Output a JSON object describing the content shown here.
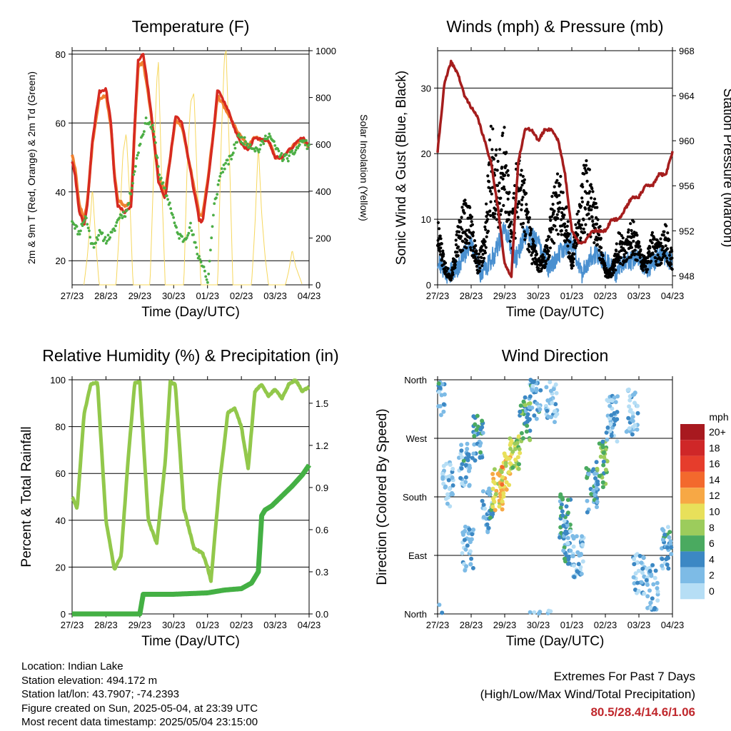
{
  "footer": {
    "location": "Location: Indian Lake",
    "elevation": "Station elevation: 494.172 m",
    "latlon": "Station lat/lon: 43.7907; -74.2393",
    "created": "Figure created on Sun, 2025-05-04, at 23:39 UTC",
    "recent": "Most recent data timestamp: 2025/05/04 23:15:00"
  },
  "extremes": {
    "title": "Extremes For Past 7 Days",
    "subtitle": "(High/Low/Max Wind/Total Precipitation)",
    "values": "80.5/28.4/14.6/1.06",
    "color": "#c0282d"
  },
  "chart_data": [
    {
      "type": "line",
      "title": "Temperature (F)",
      "xlabel": "Time (Day/UTC)",
      "ylabel": "2m & 9m T (Red, Orange) & 2m Td (Green)",
      "y2label": "Solar Insolation (Yellow)",
      "x_ticks": [
        "27/23",
        "28/23",
        "29/23",
        "30/23",
        "01/23",
        "02/23",
        "03/23",
        "04/23"
      ],
      "y_ticks": [
        20,
        40,
        60,
        80
      ],
      "y2_ticks": [
        0,
        200,
        400,
        600,
        800,
        1000
      ],
      "ylim": [
        13,
        81
      ],
      "y2lim": [
        0,
        1000
      ],
      "grid": "horizontal",
      "colors": {
        "t2m": "#d62a21",
        "t9m": "#f08030",
        "td": "#4cae45",
        "solar": "#f6d75e"
      },
      "series": [
        {
          "key": "t2m",
          "x": [
            0,
            0.1,
            0.2,
            0.35,
            0.45,
            0.6,
            0.8,
            1.0,
            1.15,
            1.25,
            1.35,
            1.55,
            1.75,
            1.85,
            1.95,
            2.1,
            2.3,
            2.55,
            2.75,
            2.9,
            3.05,
            3.25,
            3.55,
            3.75,
            3.85,
            4.0,
            4.15,
            4.3,
            4.6,
            4.85,
            5.0,
            5.2,
            5.4,
            5.6,
            5.8,
            6.0,
            6.2,
            6.4,
            6.6,
            6.8,
            7.0
          ],
          "y": [
            49,
            44,
            35,
            30,
            36,
            55,
            69,
            70,
            60,
            44,
            36,
            34,
            36,
            60,
            78,
            80,
            66,
            43,
            38,
            50,
            62,
            60,
            43,
            32,
            31,
            42,
            55,
            70,
            64,
            57,
            54,
            52,
            56,
            55,
            55,
            50,
            50,
            52,
            54,
            56,
            53
          ]
        },
        {
          "key": "t9m",
          "x": [
            0,
            0.1,
            0.2,
            0.35,
            0.45,
            0.6,
            0.8,
            1.0,
            1.15,
            1.25,
            1.35,
            1.55,
            1.75,
            1.85,
            1.95,
            2.1,
            2.3,
            2.55,
            2.75,
            2.9,
            3.05,
            3.25,
            3.55,
            3.75,
            3.85,
            4.0,
            4.15,
            4.3,
            4.6,
            4.85,
            5.0,
            5.2,
            5.4,
            5.6,
            5.8,
            6.0,
            6.2,
            6.4,
            6.6,
            6.8,
            7.0
          ],
          "y": [
            51,
            46,
            37,
            32,
            37,
            54,
            67,
            68,
            59,
            45,
            38,
            36,
            37,
            59,
            76,
            78,
            65,
            44,
            40,
            50,
            61,
            59,
            44,
            34,
            33,
            43,
            55,
            68,
            63,
            58,
            56,
            53,
            56,
            55,
            55,
            50,
            50,
            52,
            54,
            55,
            53
          ]
        },
        {
          "key": "td",
          "x": [
            0,
            0.2,
            0.4,
            0.6,
            0.8,
            1.0,
            1.2,
            1.4,
            1.6,
            1.7,
            1.8,
            2.0,
            2.2,
            2.4,
            2.6,
            2.9,
            3.1,
            3.3,
            3.5,
            3.7,
            3.9,
            4.0,
            4.2,
            4.4,
            4.7,
            4.9,
            5.2,
            5.5,
            5.8,
            6.0,
            6.2,
            6.4,
            6.6,
            6.8,
            7.0
          ],
          "y": [
            32,
            28,
            33,
            24,
            28,
            26,
            28,
            33,
            34,
            38,
            44,
            54,
            61,
            58,
            44,
            36,
            28,
            26,
            30,
            22,
            18,
            13,
            36,
            46,
            50,
            56,
            54,
            52,
            57,
            53,
            50,
            50,
            52,
            55,
            53
          ]
        },
        {
          "key": "solar",
          "axis": "y2",
          "x": [
            0.35,
            0.45,
            0.55,
            0.6,
            0.7,
            0.8,
            1.3,
            1.4,
            1.5,
            1.6,
            1.7,
            1.8,
            2.3,
            2.4,
            2.5,
            2.55,
            2.65,
            2.75,
            3.3,
            3.4,
            3.5,
            3.6,
            3.7,
            3.8,
            4.3,
            4.4,
            4.5,
            4.55,
            4.65,
            4.75,
            5.3,
            5.4,
            5.5,
            5.6,
            5.7,
            5.8,
            6.3,
            6.4,
            6.5,
            6.6,
            6.7,
            6.8
          ],
          "y": [
            0,
            120,
            300,
            420,
            180,
            0,
            0,
            250,
            560,
            650,
            380,
            0,
            0,
            450,
            870,
            950,
            420,
            0,
            0,
            520,
            780,
            820,
            430,
            0,
            0,
            600,
            980,
            1000,
            540,
            0,
            0,
            250,
            600,
            300,
            120,
            0,
            0,
            60,
            150,
            80,
            40,
            0
          ]
        }
      ]
    },
    {
      "type": "line",
      "title": "Winds (mph) & Pressure (mb)",
      "xlabel": "Time (Day/UTC)",
      "ylabel": "Sonic Wind & Gust (Blue, Black)",
      "y2label": "Station Pressure (Maroon)",
      "x_ticks": [
        "27/23",
        "28/23",
        "29/23",
        "30/23",
        "01/23",
        "02/23",
        "03/23",
        "04/23"
      ],
      "y_ticks": [
        0,
        10,
        20,
        30
      ],
      "y2_ticks": [
        948,
        952,
        956,
        960,
        964,
        968
      ],
      "ylim": [
        0,
        35.7
      ],
      "y2lim": [
        947.2,
        968
      ],
      "grid": "horizontal",
      "colors": {
        "wind": "#4a90d0",
        "gust": "#000000",
        "pressure": "#a51d1d"
      },
      "series": [
        {
          "key": "wind",
          "x": [
            0,
            0.3,
            0.6,
            1.0,
            1.3,
            1.7,
            2.0,
            2.3,
            2.6,
            3.0,
            3.3,
            3.6,
            4.0,
            4.3,
            4.6,
            5.0,
            5.3,
            5.6,
            6.0,
            6.3,
            6.6,
            7.0
          ],
          "y": [
            3,
            1,
            2,
            6,
            1,
            4,
            8,
            3,
            7,
            6,
            2,
            4,
            6,
            1,
            4,
            3,
            1,
            3,
            3,
            2,
            4,
            3
          ]
        },
        {
          "key": "gust",
          "x": [
            0,
            0.2,
            0.4,
            0.6,
            0.8,
            1.0,
            1.2,
            1.4,
            1.6,
            1.8,
            2.0,
            2.2,
            2.4,
            2.6,
            2.8,
            3.0,
            3.2,
            3.4,
            3.6,
            3.8,
            4.0,
            4.2,
            4.4,
            4.6,
            4.8,
            5.0,
            5.2,
            5.4,
            5.6,
            5.8,
            6.0,
            6.2,
            6.4,
            6.6,
            6.8,
            7.0
          ],
          "y": [
            8,
            3,
            1,
            7,
            10,
            9,
            3,
            6,
            20,
            15,
            18,
            8,
            16,
            12,
            6,
            3,
            4,
            10,
            13,
            11,
            3,
            10,
            15,
            12,
            8,
            2,
            2,
            6,
            5,
            8,
            5,
            3,
            6,
            5,
            7,
            4
          ]
        },
        {
          "key": "pressure",
          "axis": "y2",
          "x": [
            0,
            0.2,
            0.4,
            0.6,
            0.8,
            1.0,
            1.2,
            1.4,
            1.6,
            1.8,
            2.0,
            2.2,
            2.4,
            2.6,
            2.8,
            3.0,
            3.2,
            3.4,
            3.6,
            3.8,
            4.0,
            4.2,
            4.4,
            4.6,
            4.8,
            5.0,
            5.2,
            5.4,
            5.6,
            5.8,
            6.0,
            6.2,
            6.4,
            6.6,
            6.8,
            7.0
          ],
          "y": [
            959,
            965,
            967,
            966,
            964,
            963,
            962,
            960,
            958,
            954,
            949,
            948,
            958,
            961,
            961,
            960,
            961,
            961,
            960,
            957,
            952,
            951,
            951,
            952,
            952,
            952,
            953,
            953,
            954,
            955,
            955,
            956,
            956,
            957,
            957,
            959
          ]
        }
      ]
    },
    {
      "type": "line",
      "title": "Relative Humidity (%) & Precipitation (in)",
      "xlabel": "Time (Day/UTC)",
      "ylabel": "Percent & Total Rainfall",
      "x_ticks": [
        "27/23",
        "28/23",
        "29/23",
        "30/23",
        "01/23",
        "02/23",
        "03/23",
        "04/23"
      ],
      "y_ticks": [
        0,
        20,
        40,
        60,
        80,
        100
      ],
      "y2_ticks": [
        "0.0",
        "0.3",
        "0.6",
        "0.9",
        "1.2",
        "1.5"
      ],
      "ylim": [
        0,
        100
      ],
      "y2lim": [
        0,
        1.667
      ],
      "grid": "horizontal",
      "colors": {
        "rh": "#92c84b",
        "precip": "#44b044"
      },
      "series": [
        {
          "key": "rh",
          "x": [
            0,
            0.15,
            0.35,
            0.55,
            0.75,
            1.0,
            1.25,
            1.45,
            1.65,
            1.85,
            2.0,
            2.25,
            2.5,
            2.75,
            2.9,
            3.05,
            3.3,
            3.6,
            3.85,
            4.0,
            4.1,
            4.35,
            4.6,
            4.8,
            5.0,
            5.2,
            5.4,
            5.6,
            5.8,
            6.0,
            6.2,
            6.4,
            6.6,
            6.8,
            7.0
          ],
          "y": [
            50,
            45,
            85,
            98,
            99,
            40,
            19,
            25,
            65,
            99,
            99,
            40,
            30,
            65,
            99,
            98,
            45,
            28,
            26,
            20,
            14,
            55,
            86,
            88,
            80,
            62,
            95,
            98,
            93,
            96,
            92,
            98,
            100,
            95,
            97
          ]
        },
        {
          "key": "precip",
          "axis": "y2",
          "x": [
            0,
            1.0,
            2.0,
            2.1,
            2.2,
            3.0,
            4.0,
            4.5,
            5.0,
            5.3,
            5.5,
            5.6,
            5.7,
            5.9,
            6.2,
            6.5,
            6.8,
            7.0
          ],
          "y": [
            0,
            0,
            0,
            0.14,
            0.14,
            0.14,
            0.15,
            0.17,
            0.18,
            0.22,
            0.3,
            0.7,
            0.74,
            0.77,
            0.84,
            0.91,
            0.99,
            1.06
          ]
        }
      ]
    },
    {
      "type": "scatter",
      "title": "Wind Direction",
      "xlabel": "Time (Day/UTC)",
      "ylabel": "Direction (Colored By Speed)",
      "x_ticks": [
        "27/23",
        "28/23",
        "29/23",
        "30/23",
        "01/23",
        "02/23",
        "03/23",
        "04/23"
      ],
      "y_ticks": [
        "North",
        "East",
        "South",
        "West",
        "North"
      ],
      "ylim": [
        0,
        360
      ],
      "grid": "horizontal",
      "legend": {
        "position": "right",
        "title": "mph",
        "labels": [
          "20+",
          "18",
          "16",
          "14",
          "12",
          "10",
          "8",
          "6",
          "4",
          "2",
          "0"
        ],
        "colors": [
          "#a8191f",
          "#cf2728",
          "#e63d2c",
          "#f3692d",
          "#f7a845",
          "#e8e05a",
          "#9ccc5c",
          "#4aaa60",
          "#3c88c4",
          "#7dbbe6",
          "#b6def5"
        ]
      },
      "clusters": [
        {
          "x": 0.05,
          "dir": 340,
          "speed": 3
        },
        {
          "x": 0.3,
          "dir": 200,
          "speed": 1
        },
        {
          "x": 0.8,
          "dir": 230,
          "speed": 3
        },
        {
          "x": 0.9,
          "dir": 100,
          "speed": 2
        },
        {
          "x": 1.2,
          "dir": 270,
          "speed": 4
        },
        {
          "x": 1.5,
          "dir": 160,
          "speed": 3
        },
        {
          "x": 1.8,
          "dir": 188,
          "speed": 10
        },
        {
          "x": 2.0,
          "dir": 215,
          "speed": 11
        },
        {
          "x": 2.3,
          "dir": 250,
          "speed": 8
        },
        {
          "x": 2.6,
          "dir": 300,
          "speed": 5
        },
        {
          "x": 2.9,
          "dir": 330,
          "speed": 3
        },
        {
          "x": 3.4,
          "dir": 330,
          "speed": 1
        },
        {
          "x": 3.8,
          "dir": 150,
          "speed": 5
        },
        {
          "x": 3.9,
          "dir": 110,
          "speed": 3
        },
        {
          "x": 4.2,
          "dir": 90,
          "speed": 2
        },
        {
          "x": 4.6,
          "dir": 190,
          "speed": 4
        },
        {
          "x": 4.9,
          "dir": 230,
          "speed": 6
        },
        {
          "x": 5.2,
          "dir": 300,
          "speed": 2
        },
        {
          "x": 5.8,
          "dir": 310,
          "speed": 1
        },
        {
          "x": 6.0,
          "dir": 60,
          "speed": 2
        },
        {
          "x": 6.4,
          "dir": 40,
          "speed": 2
        },
        {
          "x": 6.8,
          "dir": 100,
          "speed": 3
        }
      ]
    }
  ]
}
